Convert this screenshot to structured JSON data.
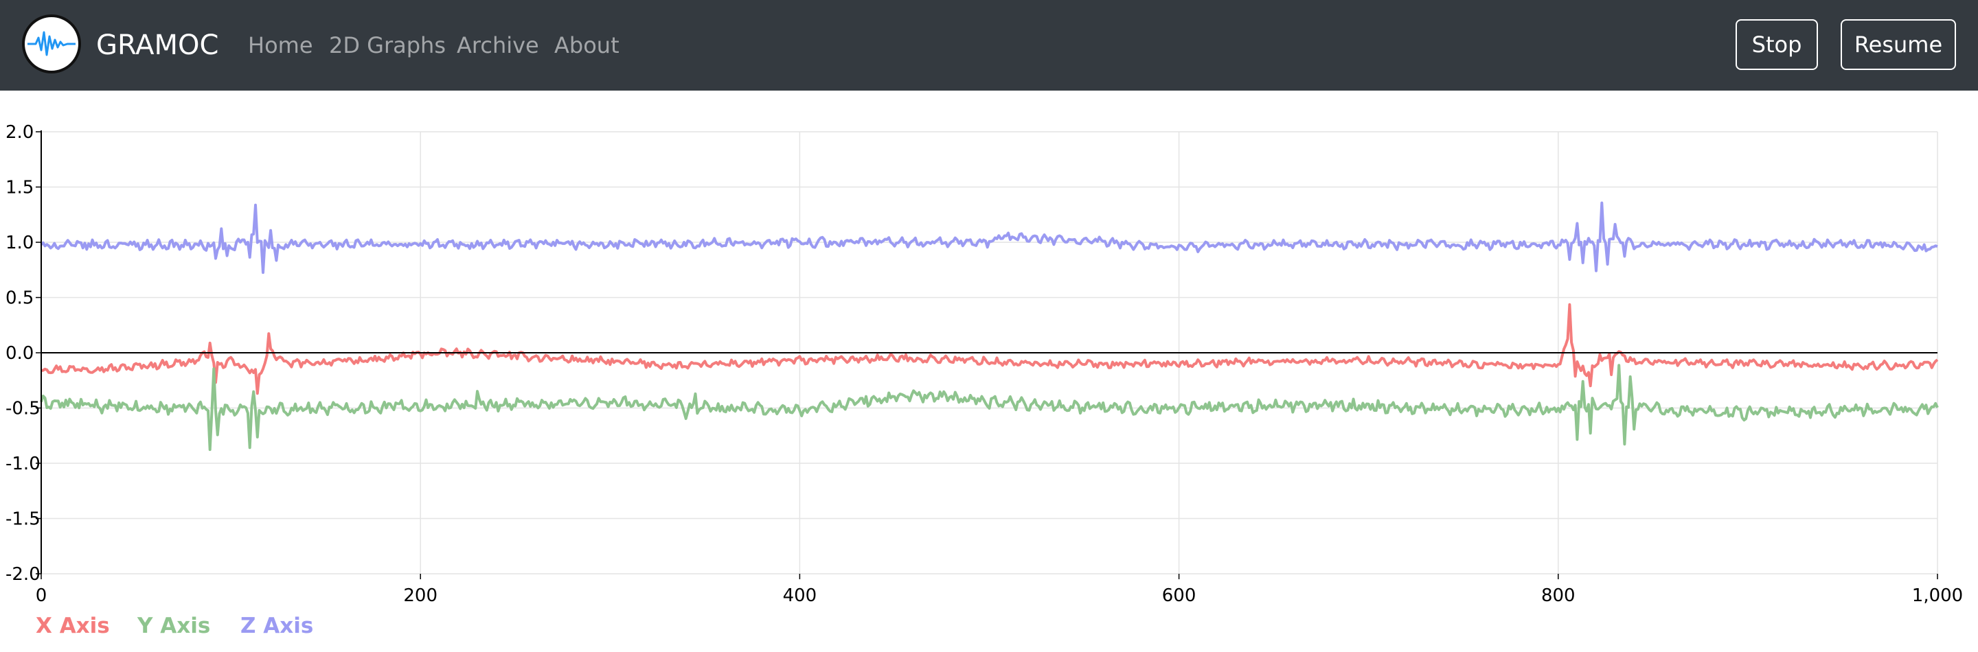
{
  "navbar": {
    "brand": "GRAMOC",
    "links": [
      "Home",
      "2D Graphs",
      "Archive",
      "About"
    ],
    "stop_label": "Stop",
    "resume_label": "Resume",
    "logo_icon": "waveform-icon",
    "background_color": "#343a40",
    "logo_wave_color": "#2196f3"
  },
  "chart_data": {
    "type": "line",
    "xlim": [
      0,
      1000
    ],
    "ylim": [
      -2.0,
      2.0
    ],
    "x_ticks": [
      0,
      200,
      400,
      600,
      800,
      1000
    ],
    "x_tick_labels": [
      "0",
      "200",
      "400",
      "600",
      "800",
      "1,000"
    ],
    "y_ticks": [
      2.0,
      1.5,
      1.0,
      0.5,
      0.0,
      -0.5,
      -1.0,
      -1.5,
      -2.0
    ],
    "y_tick_labels": [
      "2.0",
      "1.5",
      "1.0",
      "0.5",
      "0.0",
      "-0.5",
      "-1.0",
      "-1.5",
      "-2.0"
    ],
    "grid": true,
    "zero_line": true,
    "legend_position": "bottom-left",
    "series": [
      {
        "name": "X Axis",
        "color": "#f47c7c",
        "keypoints": [
          [
            0,
            -0.15
          ],
          [
            40,
            -0.14
          ],
          [
            80,
            -0.08
          ],
          [
            89,
            0.0
          ],
          [
            92,
            -0.12
          ],
          [
            100,
            -0.08
          ],
          [
            115,
            -0.2
          ],
          [
            120,
            0.02
          ],
          [
            130,
            -0.1
          ],
          [
            180,
            -0.06
          ],
          [
            200,
            -0.01
          ],
          [
            220,
            0.0
          ],
          [
            260,
            -0.04
          ],
          [
            300,
            -0.08
          ],
          [
            340,
            -0.12
          ],
          [
            360,
            -0.1
          ],
          [
            400,
            -0.07
          ],
          [
            450,
            -0.05
          ],
          [
            480,
            -0.06
          ],
          [
            520,
            -0.1
          ],
          [
            600,
            -0.1
          ],
          [
            640,
            -0.08
          ],
          [
            700,
            -0.07
          ],
          [
            760,
            -0.11
          ],
          [
            800,
            -0.12
          ],
          [
            806,
            0.18
          ],
          [
            812,
            -0.2
          ],
          [
            830,
            0.0
          ],
          [
            840,
            -0.08
          ],
          [
            900,
            -0.1
          ],
          [
            960,
            -0.12
          ],
          [
            1000,
            -0.1
          ]
        ],
        "noise": 0.025,
        "spikes": [
          [
            89,
            0.12
          ],
          [
            92,
            -0.16
          ],
          [
            114,
            -0.2
          ],
          [
            120,
            0.14
          ],
          [
            806,
            0.26
          ],
          [
            809,
            -0.18
          ],
          [
            813,
            0.08
          ],
          [
            817,
            -0.14
          ],
          [
            822,
            0.1
          ],
          [
            828,
            -0.16
          ]
        ]
      },
      {
        "name": "Y Axis",
        "color": "#8ec48e",
        "keypoints": [
          [
            0,
            -0.45
          ],
          [
            50,
            -0.5
          ],
          [
            85,
            -0.5
          ],
          [
            90,
            -0.5
          ],
          [
            100,
            -0.52
          ],
          [
            200,
            -0.48
          ],
          [
            300,
            -0.45
          ],
          [
            350,
            -0.5
          ],
          [
            400,
            -0.52
          ],
          [
            460,
            -0.38
          ],
          [
            500,
            -0.44
          ],
          [
            560,
            -0.5
          ],
          [
            600,
            -0.5
          ],
          [
            640,
            -0.48
          ],
          [
            700,
            -0.48
          ],
          [
            760,
            -0.52
          ],
          [
            800,
            -0.5
          ],
          [
            830,
            -0.45
          ],
          [
            850,
            -0.5
          ],
          [
            900,
            -0.55
          ],
          [
            1000,
            -0.5
          ]
        ],
        "noise": 0.04,
        "spikes": [
          [
            89,
            -0.38
          ],
          [
            91,
            0.3
          ],
          [
            93,
            -0.2
          ],
          [
            110,
            -0.3
          ],
          [
            112,
            0.18
          ],
          [
            114,
            -0.25
          ],
          [
            230,
            0.08
          ],
          [
            340,
            -0.12
          ],
          [
            345,
            0.1
          ],
          [
            810,
            -0.3
          ],
          [
            813,
            0.22
          ],
          [
            817,
            -0.25
          ],
          [
            832,
            0.34
          ],
          [
            835,
            -0.32
          ],
          [
            838,
            0.2
          ],
          [
            840,
            -0.25
          ]
        ]
      },
      {
        "name": "Z Axis",
        "color": "#9a9af2",
        "keypoints": [
          [
            0,
            0.97
          ],
          [
            50,
            0.98
          ],
          [
            90,
            0.97
          ],
          [
            100,
            0.95
          ],
          [
            112,
            1.05
          ],
          [
            120,
            0.95
          ],
          [
            130,
            0.98
          ],
          [
            200,
            0.98
          ],
          [
            300,
            0.98
          ],
          [
            400,
            1.0
          ],
          [
            500,
            1.0
          ],
          [
            505,
            1.05
          ],
          [
            560,
            1.0
          ],
          [
            600,
            0.95
          ],
          [
            640,
            0.98
          ],
          [
            700,
            0.98
          ],
          [
            760,
            0.98
          ],
          [
            800,
            0.98
          ],
          [
            810,
            1.0
          ],
          [
            830,
            1.02
          ],
          [
            840,
            0.98
          ],
          [
            900,
            0.98
          ],
          [
            960,
            0.98
          ],
          [
            1000,
            0.95
          ]
        ],
        "noise": 0.03,
        "spikes": [
          [
            92,
            -0.12
          ],
          [
            95,
            0.15
          ],
          [
            98,
            -0.1
          ],
          [
            110,
            -0.2
          ],
          [
            113,
            0.3
          ],
          [
            117,
            -0.25
          ],
          [
            121,
            0.18
          ],
          [
            124,
            -0.12
          ],
          [
            806,
            -0.12
          ],
          [
            810,
            0.18
          ],
          [
            813,
            -0.15
          ],
          [
            820,
            -0.28
          ],
          [
            823,
            0.32
          ],
          [
            826,
            -0.18
          ],
          [
            830,
            0.15
          ],
          [
            835,
            -0.12
          ]
        ]
      }
    ]
  }
}
